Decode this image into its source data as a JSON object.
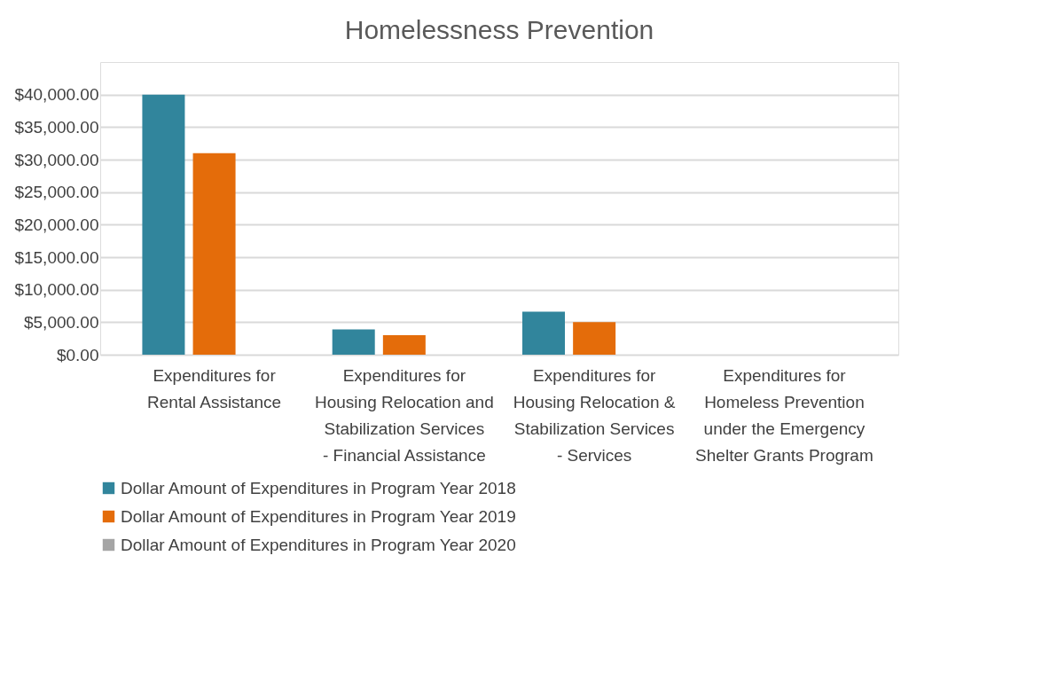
{
  "chart_data": {
    "type": "bar",
    "title": "Homelessness Prevention",
    "categories": [
      "Expenditures for Rental Assistance",
      "Expenditures for Housing Relocation and Stabilization Services - Financial Assistance",
      "Expenditures for Housing Relocation & Stabilization Services - Services",
      "Expenditures for Homeless Prevention under the Emergency Shelter Grants Program"
    ],
    "series": [
      {
        "name": "Dollar Amount of Expenditures in Program Year 2018",
        "color": "#31859c",
        "values": [
          40000,
          3900,
          6600,
          0
        ]
      },
      {
        "name": "Dollar Amount of Expenditures in Program Year 2019",
        "color": "#e46c0a",
        "values": [
          31000,
          3000,
          5000,
          0
        ]
      },
      {
        "name": "Dollar Amount of Expenditures in Program Year 2020",
        "color": "#a5a5a5",
        "values": [
          0,
          0,
          0,
          0
        ]
      }
    ],
    "ylim": [
      0,
      45000
    ],
    "yticks": [
      {
        "value": 0,
        "label": "$0.00"
      },
      {
        "value": 5000,
        "label": "$5,000.00"
      },
      {
        "value": 10000,
        "label": "$10,000.00"
      },
      {
        "value": 15000,
        "label": "$15,000.00"
      },
      {
        "value": 20000,
        "label": "$20,000.00"
      },
      {
        "value": 25000,
        "label": "$25,000.00"
      },
      {
        "value": 30000,
        "label": "$30,000.00"
      },
      {
        "value": 35000,
        "label": "$35,000.00"
      },
      {
        "value": 40000,
        "label": "$40,000.00"
      }
    ],
    "grid": "y",
    "legend": "bottom"
  }
}
